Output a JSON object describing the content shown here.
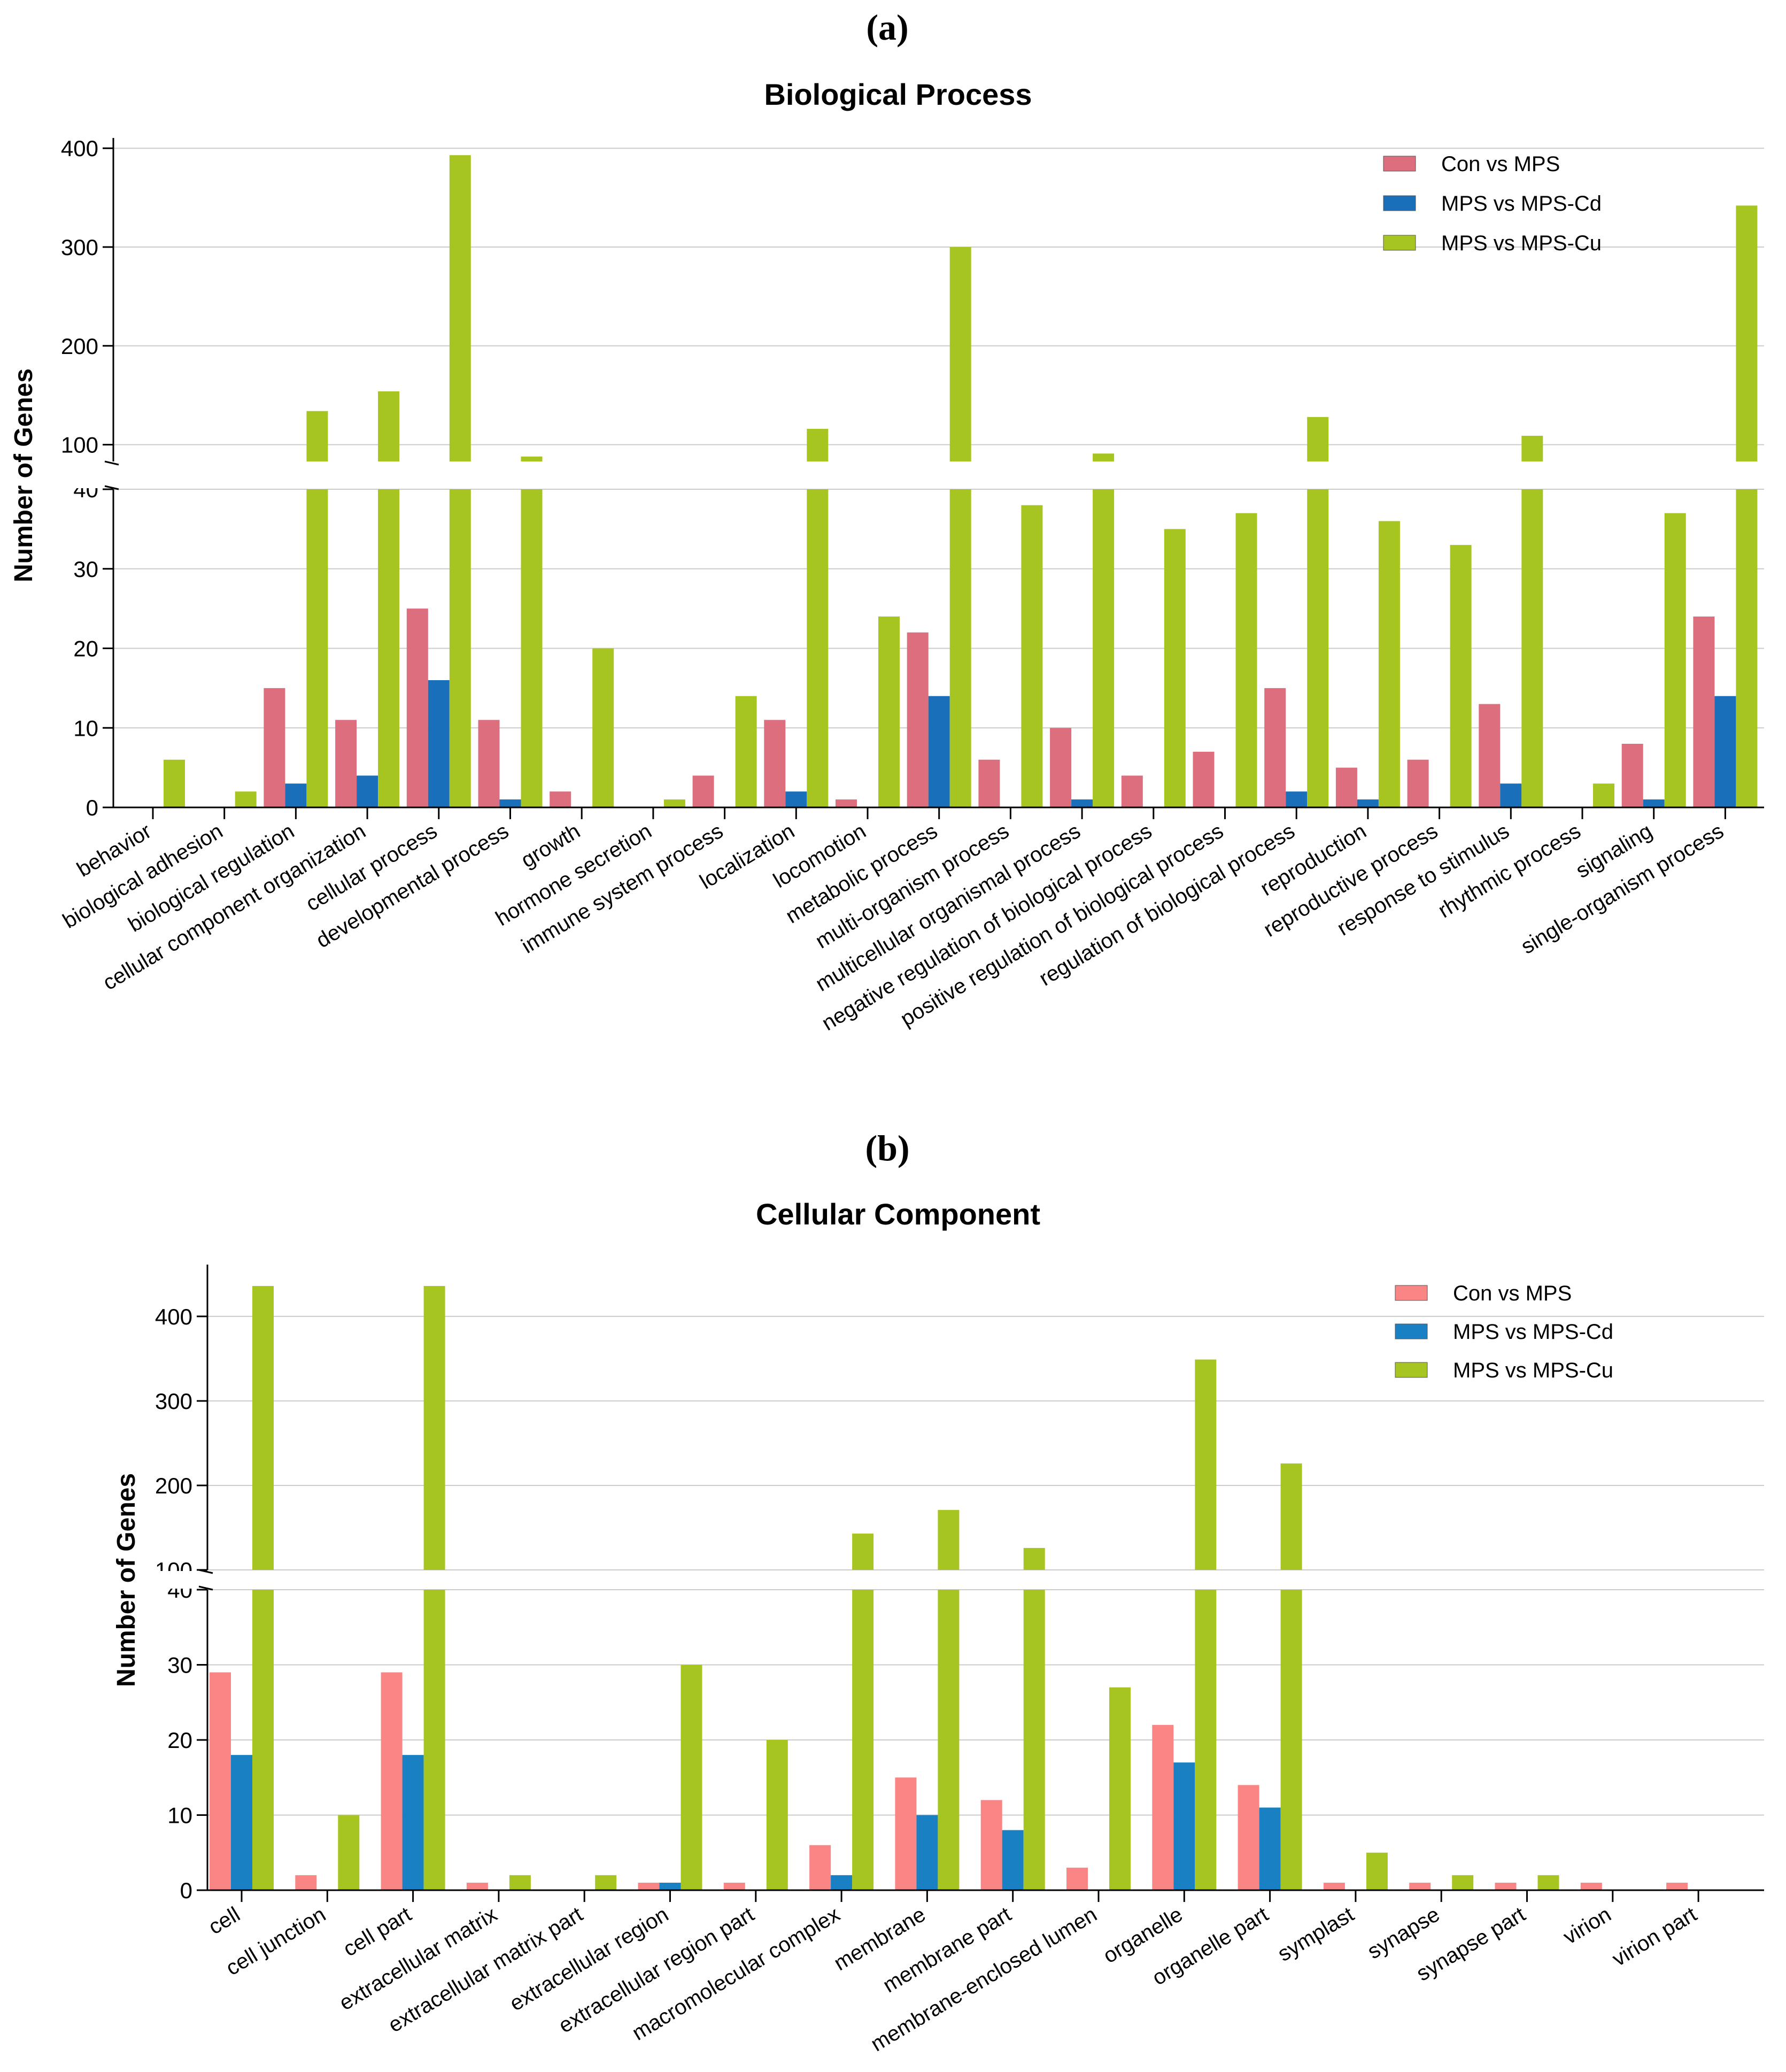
{
  "chart_data": [
    {
      "id": "a",
      "panel_label": "(a)",
      "type": "bar",
      "title": "Biological Process",
      "xlabel": "",
      "ylabel": "Number of Genes",
      "y_axis_break": {
        "lower_range": [
          0,
          40
        ],
        "upper_range": [
          83,
          405
        ]
      },
      "lower_ticks": [
        0,
        10,
        20,
        30,
        40
      ],
      "upper_ticks": [
        100,
        200,
        300,
        400
      ],
      "grid": true,
      "legend_position": "top-right",
      "categories": [
        "behavior",
        "biological adhesion",
        "biological regulation",
        "cellular component organization",
        "cellular process",
        "developmental process",
        "growth",
        "hormone secretion",
        "immune system process",
        "localization",
        "locomotion",
        "metabolic process",
        "multi-organism process",
        "multicellular organismal process",
        "negative regulation of biological process",
        "positive regulation of biological process",
        "regulation of biological process",
        "reproduction",
        "reproductive process",
        "response to stimulus",
        "rhythmic process",
        "signaling",
        "single-organism process"
      ],
      "series": [
        {
          "name": "Con vs MPS",
          "color": "#dc6e7e",
          "values": [
            0,
            0,
            15,
            11,
            25,
            11,
            2,
            0,
            4,
            11,
            1,
            22,
            6,
            10,
            4,
            7,
            15,
            5,
            6,
            13,
            0,
            8,
            24
          ]
        },
        {
          "name": "MPS vs MPS-Cd",
          "color": "#1a6fba",
          "values": [
            0,
            0,
            3,
            4,
            16,
            1,
            0,
            0,
            0,
            2,
            0,
            14,
            0,
            1,
            0,
            0,
            2,
            1,
            0,
            3,
            0,
            1,
            14
          ]
        },
        {
          "name": "MPS vs MPS-Cu",
          "color": "#a7c520",
          "values": [
            6,
            2,
            134,
            154,
            393,
            88,
            20,
            1,
            14,
            116,
            24,
            300,
            38,
            91,
            35,
            37,
            128,
            36,
            33,
            109,
            3,
            37,
            342
          ]
        }
      ]
    },
    {
      "id": "b",
      "panel_label": "(b)",
      "type": "bar",
      "title": "Cellular Component",
      "xlabel": "",
      "ylabel": "Number of Genes",
      "y_axis_break": {
        "lower_range": [
          0,
          40
        ],
        "upper_range": [
          100,
          455
        ]
      },
      "lower_ticks": [
        0,
        10,
        20,
        30,
        40
      ],
      "upper_ticks": [
        100,
        200,
        300,
        400
      ],
      "grid": true,
      "legend_position": "top-right",
      "categories": [
        "cell",
        "cell junction",
        "cell part",
        "extracellular matrix",
        "extracellular matrix part",
        "extracellular region",
        "extracellular region part",
        "macromolecular complex",
        "membrane",
        "membrane part",
        "membrane-enclosed lumen",
        "organelle",
        "organelle part",
        "symplast",
        "synapse",
        "synapse part",
        "virion",
        "virion part"
      ],
      "series": [
        {
          "name": "Con vs MPS",
          "color": "#fa8585",
          "values": [
            29,
            2,
            29,
            1,
            0,
            1,
            1,
            6,
            15,
            12,
            3,
            22,
            14,
            1,
            1,
            1,
            1,
            1
          ]
        },
        {
          "name": "MPS vs MPS-Cd",
          "color": "#1a80c4",
          "values": [
            18,
            0,
            18,
            0,
            0,
            1,
            0,
            2,
            10,
            8,
            0,
            17,
            11,
            0,
            0,
            0,
            0,
            0
          ]
        },
        {
          "name": "MPS vs MPS-Cu",
          "color": "#a7c520",
          "values": [
            436,
            10,
            436,
            2,
            2,
            30,
            20,
            143,
            171,
            126,
            27,
            349,
            226,
            5,
            2,
            2,
            0,
            0
          ]
        }
      ]
    }
  ]
}
